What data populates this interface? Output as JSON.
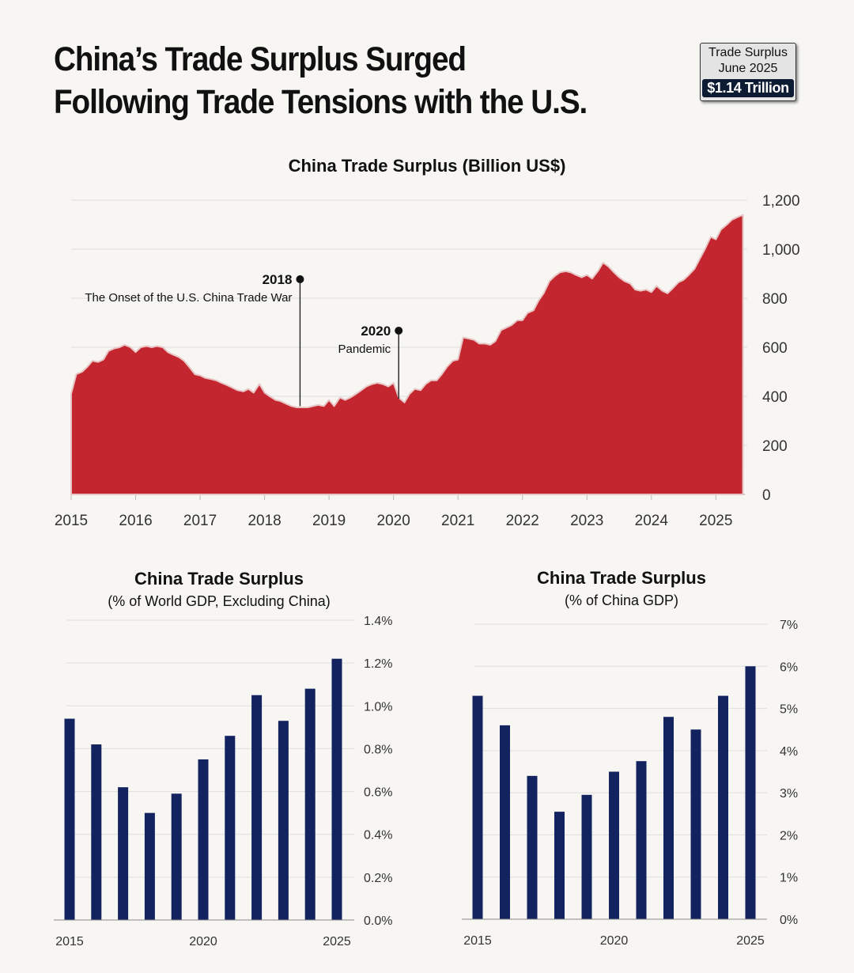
{
  "headline": {
    "line1": "China’s Trade Surplus Surged",
    "line2": "Following Trade Tensions with the U.S."
  },
  "badge": {
    "line1": "Trade Surplus",
    "line2": "June 2025",
    "value": "$1.14 Trillion"
  },
  "colors": {
    "area": "#c3262e",
    "bar": "#13235f",
    "text": "#111111"
  },
  "chart_data": [
    {
      "type": "area",
      "title": "China Trade Surplus (Billion US$)",
      "ylim": [
        0,
        1200
      ],
      "yticks": [
        0,
        200,
        400,
        600,
        800,
        1000,
        1200
      ],
      "ytick_labels": [
        "0",
        "200",
        "400",
        "600",
        "800",
        "1,000",
        "1,200"
      ],
      "xlim": [
        2015.0,
        2025.45
      ],
      "xticks": [
        2015,
        2016,
        2017,
        2018,
        2019,
        2020,
        2021,
        2022,
        2023,
        2024,
        2025
      ],
      "xtick_labels": [
        "2015",
        "2016",
        "2017",
        "2018",
        "2019",
        "2020",
        "2021",
        "2022",
        "2023",
        "2024",
        "2025"
      ],
      "x": [
        2015.0,
        2015.08,
        2015.17,
        2015.25,
        2015.33,
        2015.42,
        2015.5,
        2015.58,
        2015.67,
        2015.75,
        2015.83,
        2015.92,
        2016.0,
        2016.08,
        2016.17,
        2016.25,
        2016.33,
        2016.42,
        2016.5,
        2016.58,
        2016.67,
        2016.75,
        2016.83,
        2016.92,
        2017.0,
        2017.08,
        2017.17,
        2017.25,
        2017.33,
        2017.42,
        2017.5,
        2017.58,
        2017.67,
        2017.75,
        2017.83,
        2017.92,
        2018.0,
        2018.08,
        2018.17,
        2018.25,
        2018.33,
        2018.42,
        2018.5,
        2018.58,
        2018.67,
        2018.75,
        2018.83,
        2018.92,
        2019.0,
        2019.08,
        2019.17,
        2019.25,
        2019.33,
        2019.42,
        2019.5,
        2019.58,
        2019.67,
        2019.75,
        2019.83,
        2019.92,
        2020.0,
        2020.08,
        2020.17,
        2020.25,
        2020.33,
        2020.42,
        2020.5,
        2020.58,
        2020.67,
        2020.75,
        2020.83,
        2020.92,
        2021.0,
        2021.08,
        2021.17,
        2021.25,
        2021.33,
        2021.42,
        2021.5,
        2021.58,
        2021.67,
        2021.75,
        2021.83,
        2021.92,
        2022.0,
        2022.08,
        2022.17,
        2022.25,
        2022.33,
        2022.42,
        2022.5,
        2022.58,
        2022.67,
        2022.75,
        2022.83,
        2022.92,
        2023.0,
        2023.08,
        2023.17,
        2023.25,
        2023.33,
        2023.42,
        2023.5,
        2023.58,
        2023.67,
        2023.75,
        2023.83,
        2023.92,
        2024.0,
        2024.08,
        2024.17,
        2024.25,
        2024.33,
        2024.42,
        2024.5,
        2024.58,
        2024.67,
        2024.75,
        2024.83,
        2024.92,
        2025.0,
        2025.08,
        2025.17,
        2025.25,
        2025.33,
        2025.42
      ],
      "values": [
        410,
        490,
        500,
        520,
        545,
        540,
        550,
        585,
        595,
        600,
        610,
        600,
        580,
        600,
        605,
        600,
        605,
        600,
        580,
        570,
        560,
        545,
        520,
        490,
        485,
        475,
        470,
        465,
        455,
        445,
        435,
        425,
        420,
        430,
        415,
        450,
        415,
        400,
        385,
        380,
        370,
        360,
        355,
        355,
        355,
        360,
        365,
        360,
        385,
        360,
        395,
        385,
        395,
        410,
        425,
        440,
        450,
        455,
        450,
        440,
        455,
        395,
        375,
        410,
        430,
        425,
        450,
        465,
        465,
        490,
        520,
        545,
        550,
        640,
        635,
        630,
        615,
        615,
        610,
        625,
        670,
        680,
        690,
        710,
        710,
        740,
        750,
        790,
        820,
        870,
        890,
        905,
        910,
        905,
        895,
        885,
        895,
        880,
        910,
        945,
        930,
        905,
        885,
        870,
        860,
        835,
        830,
        835,
        825,
        850,
        830,
        820,
        840,
        865,
        875,
        895,
        920,
        960,
        1000,
        1050,
        1040,
        1080,
        1100,
        1120,
        1130,
        1140
      ],
      "annotations": [
        {
          "x": 2018.55,
          "y": 360,
          "label": "2018",
          "text": "The Onset of the U.S. China Trade War"
        },
        {
          "x": 2020.08,
          "y": 390,
          "label": "2020",
          "text": "Pandemic"
        }
      ]
    },
    {
      "type": "bar",
      "title": "China Trade Surplus",
      "subtitle": "(% of World GDP, Excluding China)",
      "categories": [
        "2015",
        "2016",
        "2017",
        "2018",
        "2019",
        "2020",
        "2021",
        "2022",
        "2023",
        "2024",
        "2025"
      ],
      "xtick_labels": [
        "2015",
        "2020",
        "2025"
      ],
      "values": [
        0.94,
        0.82,
        0.62,
        0.5,
        0.59,
        0.75,
        0.86,
        1.05,
        0.93,
        1.08,
        1.22
      ],
      "ylim": [
        0,
        1.4
      ],
      "yticks": [
        0,
        0.2,
        0.4,
        0.6,
        0.8,
        1.0,
        1.2,
        1.4
      ],
      "ytick_labels": [
        "0.0%",
        "0.2%",
        "0.4%",
        "0.6%",
        "0.8%",
        "1.0%",
        "1.2%",
        "1.4%"
      ]
    },
    {
      "type": "bar",
      "title": "China Trade Surplus",
      "subtitle": "(% of China GDP)",
      "categories": [
        "2015",
        "2016",
        "2017",
        "2018",
        "2019",
        "2020",
        "2021",
        "2022",
        "2023",
        "2024",
        "2025"
      ],
      "xtick_labels": [
        "2015",
        "2020",
        "2025"
      ],
      "values": [
        5.3,
        4.6,
        3.4,
        2.55,
        2.95,
        3.5,
        3.75,
        4.8,
        4.5,
        5.3,
        6.0
      ],
      "ylim": [
        0,
        7
      ],
      "yticks": [
        0,
        1,
        2,
        3,
        4,
        5,
        6,
        7
      ],
      "ytick_labels": [
        "0%",
        "1%",
        "2%",
        "3%",
        "4%",
        "5%",
        "6%",
        "7%"
      ]
    }
  ]
}
